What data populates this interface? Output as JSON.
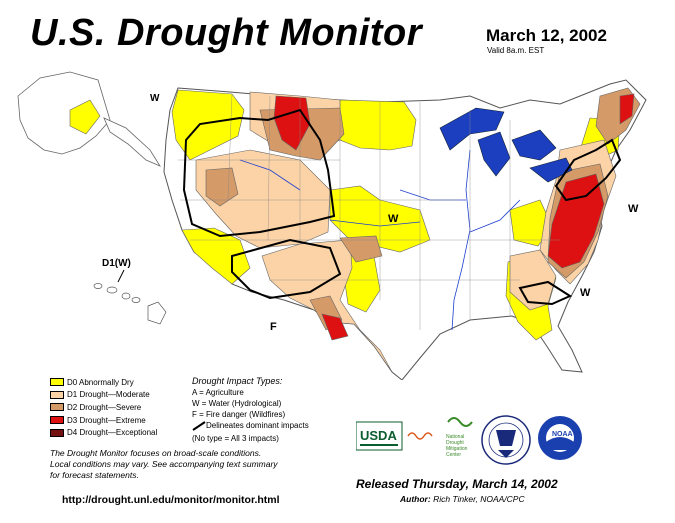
{
  "header": {
    "title": "U.S. Drought Monitor",
    "date": "March 12, 2002",
    "valid": "Valid 8a.m. EST"
  },
  "legend": {
    "items": [
      {
        "label": "D0 Abnormally Dry",
        "color": "#ffff00"
      },
      {
        "label": "D1 Drought—Moderate",
        "color": "#fcd3a6"
      },
      {
        "label": "D2 Drought—Severe",
        "color": "#d49a68"
      },
      {
        "label": "D3 Drought—Extreme",
        "color": "#dd1111"
      },
      {
        "label": "D4 Drought—Exceptional",
        "color": "#731010"
      }
    ]
  },
  "impacts": {
    "title": "Drought Impact Types:",
    "lines": [
      "A = Agriculture",
      "W = Water (Hydrological)",
      "F = Fire danger (Wildfires)"
    ],
    "delineates": "Delineates dominant impacts",
    "no_type": "(No type = All 3 impacts)"
  },
  "focus_note": [
    "The Drought Monitor focuses on broad-scale conditions.",
    "Local conditions may vary. See accompanying text summary",
    "for forecast statements."
  ],
  "url": "http://drought.unl.edu/monitor/monitor.html",
  "released": "Released Thursday, March 14, 2002",
  "author_label": "Author:",
  "author": "Rich Tinker, NOAA/CPC",
  "map_labels": {
    "w_nw": "W",
    "w_center": "W",
    "w_ne": "W",
    "w_se": "W",
    "f_sw": "F",
    "d1w_hawaii": "D1(W)"
  },
  "logos": {
    "usda": "USDA",
    "ndmc": [
      "National",
      "Drought",
      "Mitigation",
      "Center"
    ],
    "noaa": "NOAA"
  }
}
